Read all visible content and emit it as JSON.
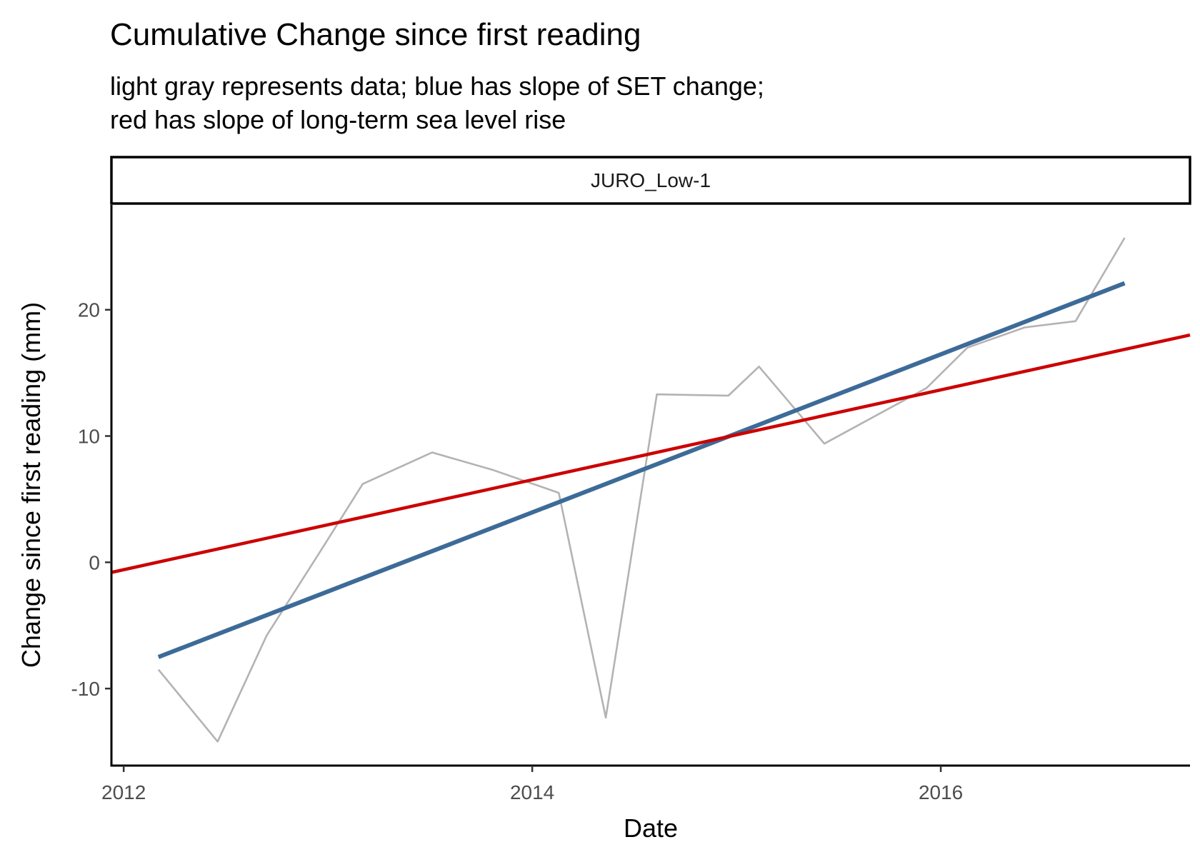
{
  "chart_data": {
    "type": "line",
    "title": "Cumulative Change since first reading",
    "subtitle_lines": [
      "light gray represents data; blue has slope of SET change;",
      "red has slope of long-term sea level rise"
    ],
    "facet_label": "JURO_Low-1",
    "xlabel": "Date",
    "ylabel": "Change since first reading (mm)",
    "x_ticks": [
      {
        "label": "2012",
        "value": 2012
      },
      {
        "label": "2014",
        "value": 2014
      },
      {
        "label": "2016",
        "value": 2016
      }
    ],
    "y_ticks": [
      {
        "label": "-10",
        "value": -10
      },
      {
        "label": "0",
        "value": 0
      },
      {
        "label": "10",
        "value": 10
      },
      {
        "label": "20",
        "value": 20
      }
    ],
    "xlim": [
      2011.94,
      2017.22
    ],
    "ylim": [
      -16.1,
      28.3
    ],
    "grid": false,
    "series": [
      {
        "color": "#b3b3b3",
        "points": [
          [
            2012.17,
            -8.5
          ],
          [
            2012.46,
            -14.2
          ],
          [
            2012.7,
            -5.8
          ],
          [
            2012.96,
            0.8
          ],
          [
            2013.17,
            6.2
          ],
          [
            2013.51,
            8.7
          ],
          [
            2013.81,
            7.3
          ],
          [
            2014.13,
            5.5
          ],
          [
            2014.36,
            -12.3
          ],
          [
            2014.61,
            13.3
          ],
          [
            2014.96,
            13.2
          ],
          [
            2015.11,
            15.5
          ],
          [
            2015.43,
            9.4
          ],
          [
            2015.93,
            13.8
          ],
          [
            2016.13,
            17.0
          ],
          [
            2016.41,
            18.6
          ],
          [
            2016.66,
            19.1
          ],
          [
            2016.9,
            25.7
          ]
        ]
      },
      {
        "color": "#3d6b98",
        "points": [
          [
            2012.17,
            -7.5
          ],
          [
            2016.9,
            22.1
          ]
        ]
      },
      {
        "color": "#cc0000",
        "points": [
          [
            2011.94,
            -0.8
          ],
          [
            2017.22,
            18.0
          ]
        ]
      }
    ]
  }
}
